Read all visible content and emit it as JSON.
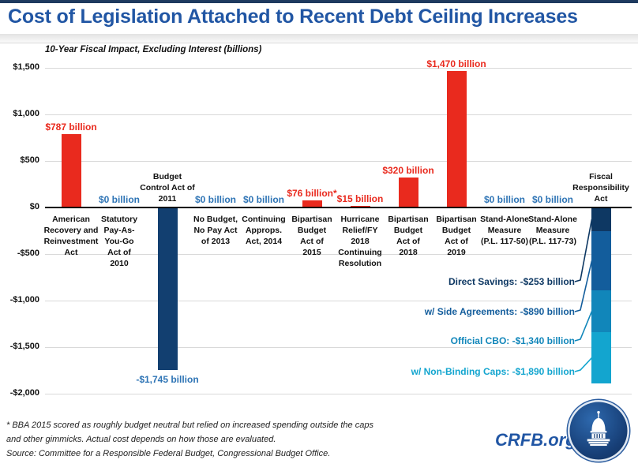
{
  "header": {
    "title": "Cost of Legislation Attached to Recent Debt Ceiling Increases",
    "subtitle": "10-Year Fiscal Impact, Excluding Interest (billions)"
  },
  "footer": {
    "footnote_line1": "* BBA 2015 scored as roughly budget neutral but relied on increased spending outside the caps",
    "footnote_line2": "and other gimmicks. Actual cost depends on how those are evaluated.",
    "source": "Source: Committee for a Responsible Federal Budget, Congressional Budget Office.",
    "logo_text": "CRFB.org"
  },
  "colors": {
    "title_blue": "#2156a4",
    "bar_red": "#e92a1e",
    "bar_navy": "#123f70",
    "zero_label_blue": "#2e74b5",
    "gridline_gray": "#d9d9d9",
    "axis_black": "#000000"
  },
  "chart_data": {
    "type": "bar",
    "title": "Cost of Legislation Attached to Recent Debt Ceiling Increases",
    "subtitle": "10-Year Fiscal Impact, Excluding Interest (billions)",
    "unit": "billions of dollars",
    "ylim": [
      -2000,
      1500
    ],
    "grid": true,
    "yticks": [
      {
        "value": 1500,
        "label": "$1,500"
      },
      {
        "value": 1000,
        "label": "$1,000"
      },
      {
        "value": 500,
        "label": "$500"
      },
      {
        "value": 0,
        "label": "$0"
      },
      {
        "value": -500,
        "label": "-$500"
      },
      {
        "value": -1000,
        "label": "-$1,000"
      },
      {
        "value": -1500,
        "label": "-$1,500"
      },
      {
        "value": -2000,
        "label": "-$2,000"
      }
    ],
    "categories": [
      {
        "name": "American Recovery and Reinvestment Act",
        "lines": "American\nRecovery and\nReinvestment\nAct",
        "value": 787,
        "value_label": "$787 billion",
        "bar_color": "#e92a1e",
        "value_label_color": "#e92a1e",
        "label_side": "below"
      },
      {
        "name": "Statutory Pay-As-You-Go Act of 2010",
        "lines": "Statutory\nPay-As-\nYou-Go\nAct of\n2010",
        "value": 0,
        "value_label": "$0 billion",
        "bar_color": "#2e74b5",
        "value_label_color": "#2e74b5",
        "label_side": "below"
      },
      {
        "name": "Budget Control Act of 2011",
        "lines": "Budget\nControl Act of\n2011",
        "value": -1745,
        "value_label": "-$1,745 billion",
        "bar_color": "#123f70",
        "value_label_color": "#2e74b5",
        "label_side": "above"
      },
      {
        "name": "No Budget, No Pay Act of 2013",
        "lines": "No Budget,\nNo Pay Act\nof 2013",
        "value": 0,
        "value_label": "$0 billion",
        "bar_color": "#2e74b5",
        "value_label_color": "#2e74b5",
        "label_side": "below"
      },
      {
        "name": "Continuing Approps. Act, 2014",
        "lines": "Continuing\nApprops.\nAct, 2014",
        "value": 0,
        "value_label": "$0 billion",
        "bar_color": "#2e74b5",
        "value_label_color": "#2e74b5",
        "label_side": "below"
      },
      {
        "name": "Bipartisan Budget Act of 2015",
        "lines": "Bipartisan\nBudget\nAct of\n2015",
        "value": 76,
        "value_label": "$76 billion*",
        "bar_color": "#e92a1e",
        "value_label_color": "#e92a1e",
        "label_side": "below"
      },
      {
        "name": "Hurricane Relief/FY 2018 Continuing Resolution",
        "lines": "Hurricane\nRelief/FY\n2018\nContinuing\nResolution",
        "value": 15,
        "value_label": "$15 billion",
        "bar_color": "#e92a1e",
        "value_label_color": "#e92a1e",
        "label_side": "below"
      },
      {
        "name": "Bipartisan Budget Act of 2018",
        "lines": "Bipartisan\nBudget\nAct of\n2018",
        "value": 320,
        "value_label": "$320 billion",
        "bar_color": "#e92a1e",
        "value_label_color": "#e92a1e",
        "label_side": "below"
      },
      {
        "name": "Bipartisan Budget Act of 2019",
        "lines": "Bipartisan\nBudget\nAct of\n2019",
        "value": 1470,
        "value_label": "$1,470 billion",
        "bar_color": "#e92a1e",
        "value_label_color": "#e92a1e",
        "label_side": "below"
      },
      {
        "name": "Stand-Alone Measure (P.L. 117-50)",
        "lines": "Stand-Alone\nMeasure\n(P.L. 117-50)",
        "value": 0,
        "value_label": "$0 billion",
        "bar_color": "#2e74b5",
        "value_label_color": "#2e74b5",
        "label_side": "below"
      },
      {
        "name": "Stand-Alone Measure (P.L. 117-73)",
        "lines": "Stand-Alone\nMeasure\n(P.L. 117-73)",
        "value": 0,
        "value_label": "$0 billion",
        "bar_color": "#2e74b5",
        "value_label_color": "#2e74b5",
        "label_side": "below"
      },
      {
        "name": "Fiscal Responsibility Act",
        "lines": "Fiscal\nResponsibility\nAct",
        "label_side": "above",
        "stacked_segments": [
          {
            "name": "Direct Savings",
            "cumulative_value": -253,
            "color": "#0e3863",
            "annotation": "Direct Savings: -$253 billion"
          },
          {
            "name": "w/ Side Agreements",
            "cumulative_value": -890,
            "color": "#135d9c",
            "annotation": "w/ Side Agreements: -$890 billion"
          },
          {
            "name": "Official CBO",
            "cumulative_value": -1340,
            "color": "#1186ba",
            "annotation": "Official CBO: -$1,340 billion"
          },
          {
            "name": "w/ Non-Binding Caps",
            "cumulative_value": -1890,
            "color": "#13a5cf",
            "annotation": "w/ Non-Binding Caps: -$1,890 billion"
          }
        ]
      }
    ]
  }
}
